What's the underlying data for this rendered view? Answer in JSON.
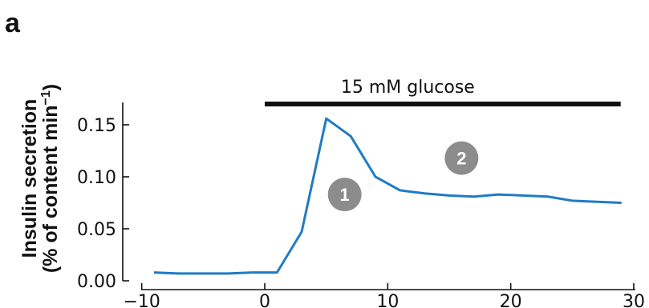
{
  "panel_label": "a",
  "chart_data": {
    "type": "line",
    "ylabel_line1": "Insulin secretion",
    "ylabel_line2": "(% of content min",
    "ylabel_sup": "−1",
    "ylabel_close": ")",
    "xlim": [
      -10,
      30
    ],
    "ylim": [
      0,
      0.17
    ],
    "xticks": [
      -10,
      0,
      10,
      20,
      30
    ],
    "xtick_labels": [
      "−10",
      "0",
      "10",
      "20",
      "30"
    ],
    "yticks": [
      0,
      0.05,
      0.1,
      0.15
    ],
    "ytick_labels": [
      "0.00",
      "0.05",
      "0.10",
      "0.15"
    ],
    "grid": false,
    "series": [
      {
        "color": "#1f7bc4",
        "points": [
          [
            -9,
            0.008
          ],
          [
            -7,
            0.007
          ],
          [
            -5,
            0.007
          ],
          [
            -3,
            0.007
          ],
          [
            -1,
            0.008
          ],
          [
            1,
            0.008
          ],
          [
            3,
            0.047
          ],
          [
            5,
            0.156
          ],
          [
            7,
            0.139
          ],
          [
            9,
            0.1
          ],
          [
            11,
            0.087
          ],
          [
            13,
            0.084
          ],
          [
            15,
            0.082
          ],
          [
            17,
            0.081
          ],
          [
            19,
            0.083
          ],
          [
            21,
            0.082
          ],
          [
            23,
            0.081
          ],
          [
            25,
            0.077
          ],
          [
            27,
            0.076
          ],
          [
            29,
            0.075
          ]
        ]
      }
    ],
    "annotations": {
      "stimulus_bar": {
        "label": "15 mM glucose",
        "x_start": 0,
        "x_end": 29,
        "color": "#111111"
      },
      "phase_markers": [
        {
          "label": "1",
          "x": 6.5,
          "y": 0.083
        },
        {
          "label": "2",
          "x": 16,
          "y": 0.118
        }
      ],
      "marker_color": "#8c8c8c"
    }
  }
}
